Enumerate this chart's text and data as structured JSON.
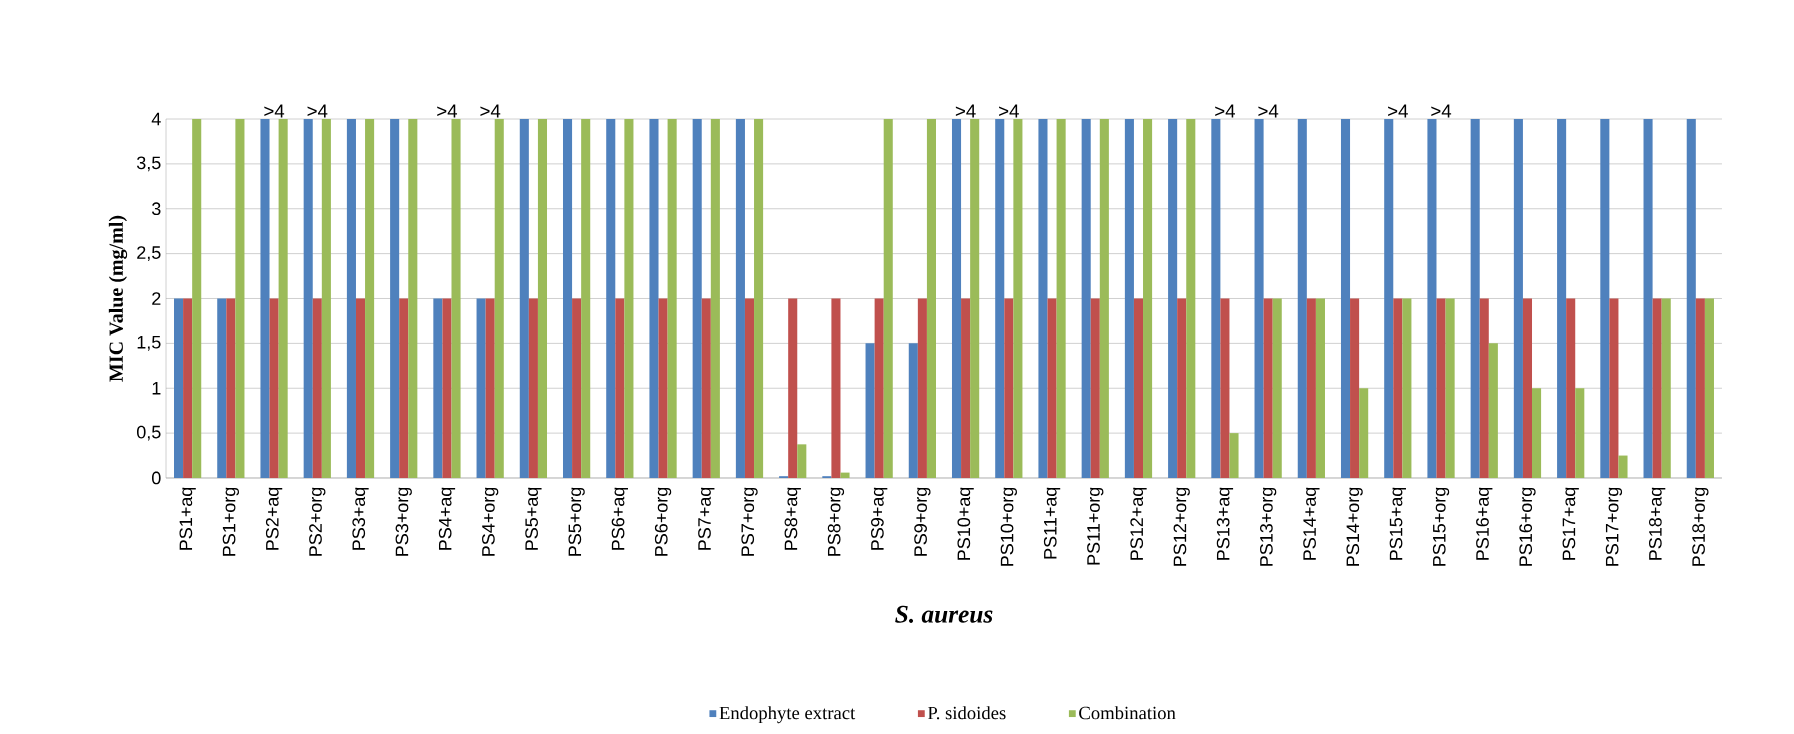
{
  "chart_data": {
    "type": "bar",
    "xlabel": "S. aureus",
    "ylabel": "MIC Value (mg/ml)",
    "categories": [
      "PS1+aq",
      "PS1+org",
      "PS2+aq",
      "PS2+org",
      "PS3+aq",
      "PS3+org",
      "PS4+aq",
      "PS4+org",
      "PS5+aq",
      "PS5+org",
      "PS6+aq",
      "PS6+org",
      "PS7+aq",
      "PS7+org",
      "PS8+aq",
      "PS8+org",
      "PS9+aq",
      "PS9+org",
      "PS10+aq",
      "PS10+org",
      "PS11+aq",
      "PS11+org",
      "PS12+aq",
      "PS12+org",
      "PS13+aq",
      "PS13+org",
      "PS14+aq",
      "PS14+org",
      "PS15+aq",
      "PS15+org",
      "PS16+aq",
      "PS16+org",
      "PS17+aq",
      "PS17+org",
      "PS18+aq",
      "PS18+org"
    ],
    "series": [
      {
        "name": "Endophyte extract",
        "color": "#4f81bd",
        "values": [
          2,
          2,
          4,
          4,
          4,
          4,
          2,
          2,
          4,
          4,
          4,
          4,
          4,
          4,
          0.02,
          0.02,
          1.5,
          1.5,
          4,
          4,
          4,
          4,
          4,
          4,
          4,
          4,
          4,
          4,
          4,
          4,
          4,
          4,
          4,
          4,
          4,
          4
        ]
      },
      {
        "name": "P. sidoides",
        "color": "#c0504d",
        "values": [
          2,
          2,
          2,
          2,
          2,
          2,
          2,
          2,
          2,
          2,
          2,
          2,
          2,
          2,
          2,
          2,
          2,
          2,
          2,
          2,
          2,
          2,
          2,
          2,
          2,
          2,
          2,
          2,
          2,
          2,
          2,
          2,
          2,
          2,
          2,
          2
        ]
      },
      {
        "name": "Combination",
        "color": "#9bbb59",
        "values": [
          4,
          4,
          4,
          4,
          4,
          4,
          4,
          4,
          4,
          4,
          4,
          4,
          4,
          4,
          0.375,
          0.06,
          4,
          4,
          4,
          4,
          4,
          4,
          4,
          4,
          0.5,
          2,
          2,
          1,
          2,
          2,
          1.5,
          1,
          1,
          0.25,
          2,
          2
        ]
      }
    ],
    "ylim": [
      0,
      4
    ],
    "yticks": [
      0,
      {
        "value": 0.5,
        "label": "0,5"
      },
      1,
      {
        "value": 1.5,
        "label": "1,5"
      },
      2,
      {
        "value": 2.5,
        "label": "2,5"
      },
      3,
      {
        "value": 3.5,
        "label": "3,5"
      },
      4
    ],
    "grid": "y",
    "legend": "bottom",
    "annotations": [
      {
        "text": ">4",
        "x": "PS2+aq",
        "y": 4
      },
      {
        "text": ">4",
        "x": "PS2+org",
        "y": 4
      },
      {
        "text": ">4",
        "x": "PS4+aq",
        "y": 4
      },
      {
        "text": ">4",
        "x": "PS4+org",
        "y": 4
      },
      {
        "text": ">4",
        "x": "PS10+aq",
        "y": 4
      },
      {
        "text": ">4",
        "x": "PS10+org",
        "y": 4
      },
      {
        "text": ">4",
        "x": "PS13+aq",
        "y": 4
      },
      {
        "text": ">4",
        "x": "PS13+org",
        "y": 4
      },
      {
        "text": ">4",
        "x": "PS15+aq",
        "y": 4
      },
      {
        "text": ">4",
        "x": "PS15+org",
        "y": 4
      }
    ]
  }
}
